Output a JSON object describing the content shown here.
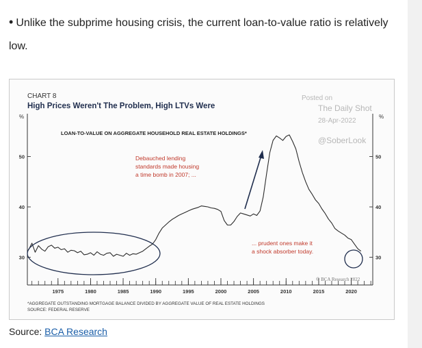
{
  "article": {
    "bullet_text": "Unlike the subprime housing crisis, the current loan-to-value ratio is relatively",
    "bullet_text_cont": "low.",
    "source_label": "Source:",
    "source_link": "BCA Research"
  },
  "watermark": {
    "posted_on": "Posted on",
    "site": "The Daily Shot",
    "date": "28-Apr-2022",
    "handle": "@SoberLook"
  },
  "chart_data": {
    "type": "line",
    "chart_label": "CHART 8",
    "title": "High Prices Weren't The Problem, High LTVs Were",
    "series_label": "LOAN-TO-VALUE ON AGGREGATE HOUSEHOLD REAL ESTATE HOLDINGS*",
    "y_unit": "%",
    "ylim": [
      24.5,
      58.5
    ],
    "yticks": [
      30,
      40,
      50
    ],
    "xlim": [
      1970.3,
      2023.3
    ],
    "xticks": [
      1975,
      1980,
      1985,
      1990,
      1995,
      2000,
      2005,
      2010,
      2015,
      2020
    ],
    "annotations": {
      "left": "Debauched lending standards made housing a time bomb in 2007; ...",
      "right": "... prudent ones make it a shock absorber today."
    },
    "credit": "© BCA Research 2022",
    "footnote": "*AGGREGATE OUTSTANDING MORTGAGE BALANCE DIVIDED BY AGGREGATE VALUE OF REAL ESTATE HOLDINGS",
    "source": "SOURCE: FEDERAL RESERVE",
    "colors": {
      "line": "#2a2a2a",
      "annotation": "#c0392b",
      "title": "#1f2d4d",
      "arrow": "#1f2d4d"
    },
    "series": [
      {
        "x": [
          1970.5,
          1971,
          1971.5,
          1972,
          1972.5,
          1973,
          1973.5,
          1974,
          1974.5,
          1975,
          1975.5,
          1976,
          1976.5,
          1977,
          1977.5,
          1978,
          1978.5,
          1979,
          1979.5,
          1980,
          1980.5,
          1981,
          1981.5,
          1982,
          1982.5,
          1983,
          1983.5,
          1984,
          1984.5,
          1985,
          1985.5,
          1986,
          1986.5,
          1987,
          1987.5,
          1988,
          1988.5,
          1989,
          1989.5,
          1990,
          1990.5,
          1991,
          1991.5,
          1992,
          1992.5,
          1993,
          1993.5,
          1994,
          1994.5,
          1995,
          1995.5,
          1996,
          1996.5,
          1997,
          1997.5,
          1998,
          1998.5,
          1999,
          1999.5,
          2000,
          2000.5,
          2001,
          2001.5,
          2002,
          2002.5,
          2003,
          2003.5,
          2004,
          2004.5,
          2005,
          2005.5,
          2006,
          2006.5,
          2007,
          2007.5,
          2008,
          2008.5,
          2009,
          2009.5,
          2010,
          2010.5,
          2011,
          2011.5,
          2012,
          2012.5,
          2013,
          2013.5,
          2014,
          2014.5,
          2015,
          2015.5,
          2016,
          2016.5,
          2017,
          2017.5,
          2018,
          2018.5,
          2019,
          2019.5,
          2020,
          2020.5,
          2021,
          2021.5
        ],
        "y": [
          31.5,
          32.8,
          31.0,
          32.3,
          31.6,
          31.2,
          32.1,
          32.4,
          31.8,
          32.0,
          31.5,
          31.7,
          31.0,
          31.4,
          31.3,
          30.9,
          31.2,
          30.5,
          30.6,
          30.9,
          30.4,
          31.1,
          30.6,
          30.4,
          30.8,
          30.9,
          30.2,
          30.6,
          30.4,
          30.2,
          30.8,
          30.4,
          30.7,
          30.6,
          30.9,
          31.2,
          31.7,
          32.2,
          32.6,
          33.5,
          34.8,
          35.8,
          36.4,
          37.0,
          37.5,
          37.9,
          38.3,
          38.6,
          38.9,
          39.2,
          39.5,
          39.7,
          39.9,
          40.2,
          40.1,
          40.0,
          39.8,
          39.7,
          39.5,
          39.1,
          37.3,
          36.4,
          36.4,
          37.1,
          38.1,
          38.8,
          38.6,
          38.4,
          38.2,
          38.6,
          38.3,
          39.2,
          42.0,
          46.5,
          50.8,
          53.2,
          54.1,
          53.7,
          53.2,
          54.0,
          54.3,
          53.0,
          51.5,
          49.0,
          46.8,
          45.0,
          43.5,
          42.5,
          41.4,
          40.7,
          39.6,
          38.7,
          37.6,
          36.8,
          35.7,
          35.2,
          34.8,
          34.4,
          33.8,
          33.5,
          32.6,
          31.7,
          31.2
        ]
      }
    ]
  }
}
